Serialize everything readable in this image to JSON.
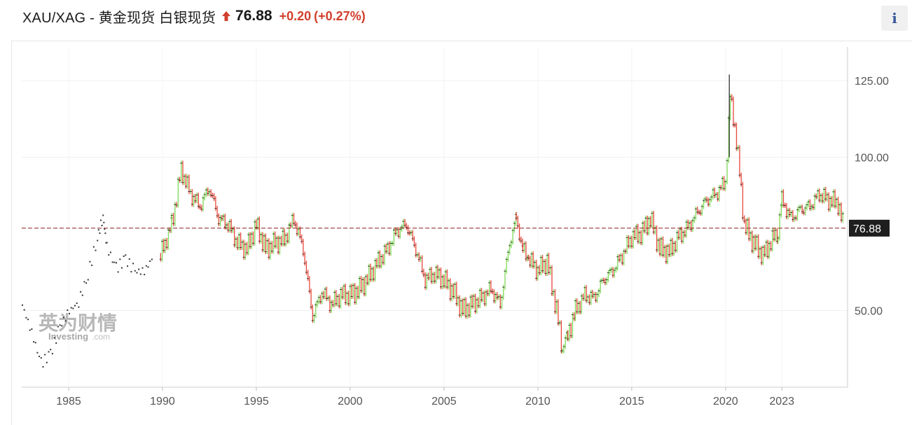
{
  "header": {
    "title": "XAU/XAG - 黄金现货 白银现货",
    "price": "76.88",
    "change": "+0.20",
    "change_pct": "(+0.27%)",
    "direction": "up",
    "change_color": "#d13f2c"
  },
  "info_button": {
    "label": "i"
  },
  "watermark": {
    "cn": "英为财情",
    "en": "Investing",
    "suffix": ".com"
  },
  "chart_data": {
    "type": "bar",
    "subtype": "ohlc-step",
    "x_start": 1982.5,
    "x_end": 2026.5,
    "ylim": [
      25,
      136
    ],
    "y_ticks": [
      125,
      100,
      50
    ],
    "y_tick_labels": [
      "125.00",
      "100.00",
      "50.00"
    ],
    "x_ticks": [
      1985,
      1990,
      1995,
      2000,
      2005,
      2010,
      2015,
      2020,
      2023
    ],
    "x_tick_labels": [
      "1985",
      "1990",
      "1995",
      "2000",
      "2005",
      "2010",
      "2015",
      "2020",
      "2023"
    ],
    "grid": true,
    "last_price": 76.88,
    "last_price_label": "76.88",
    "colors": {
      "up": "#7ed957",
      "down": "#e8473a",
      "wick": "#333333",
      "dots": "#333333",
      "price_line": "#8b1a1a",
      "tag_bg": "#1e1e1e"
    },
    "early_dots": {
      "x": [
        1982.5,
        1983.0,
        1983.5,
        1984.0,
        1984.5,
        1985.0,
        1985.5,
        1986.0,
        1986.5,
        1986.8,
        1987.0,
        1987.5,
        1988.0,
        1988.5,
        1989.0,
        1989.5
      ],
      "y": [
        52,
        43,
        33,
        36,
        45,
        50,
        53,
        62,
        74,
        81,
        71,
        64,
        67,
        63,
        63,
        68
      ]
    },
    "series": [
      {
        "x": [
          1989.9,
          1990.5,
          1991.0,
          1991.5,
          1992.0,
          1992.5,
          1993.0,
          1993.5,
          1994.0,
          1994.5,
          1995.0,
          1995.5,
          1996.0,
          1996.5,
          1997.0,
          1997.5,
          1998.0,
          1998.5,
          1999.0,
          1999.5,
          2000.0,
          2000.5,
          2001.0,
          2001.5,
          2002.0,
          2002.5,
          2003.0,
          2003.5,
          2004.0,
          2004.5,
          2005.0,
          2005.5,
          2006.0,
          2006.5,
          2007.0,
          2007.5,
          2008.0,
          2008.5,
          2008.85,
          2009.2,
          2009.5,
          2010.0,
          2010.5,
          2011.0,
          2011.3,
          2011.6,
          2012.0,
          2012.5,
          2013.0,
          2013.5,
          2014.0,
          2014.5,
          2015.0,
          2015.5,
          2016.0,
          2016.5,
          2017.0,
          2017.5,
          2018.0,
          2018.5,
          2019.0,
          2019.5,
          2020.0,
          2020.25,
          2020.5,
          2020.75,
          2021.0,
          2021.5,
          2022.0,
          2022.5,
          2022.8,
          2023.0,
          2023.5,
          2024.0,
          2024.5,
          2025.0,
          2025.5,
          2026.0,
          2026.3
        ],
        "y": [
          68,
          78,
          96,
          88,
          84,
          90,
          80,
          78,
          72,
          70,
          78,
          70,
          72,
          73,
          80,
          70,
          48,
          56,
          52,
          55,
          55,
          57,
          61,
          66,
          70,
          76,
          78,
          70,
          60,
          62,
          60,
          56,
          50,
          52,
          54,
          57,
          52,
          72,
          80,
          70,
          67,
          63,
          66,
          50,
          38,
          42,
          50,
          55,
          54,
          60,
          63,
          68,
          74,
          75,
          80,
          70,
          69,
          74,
          77,
          82,
          86,
          88,
          92,
          120,
          110,
          95,
          78,
          72,
          68,
          73,
          76,
          86,
          80,
          83,
          84,
          88,
          86,
          85,
          76.88
        ]
      }
    ]
  }
}
